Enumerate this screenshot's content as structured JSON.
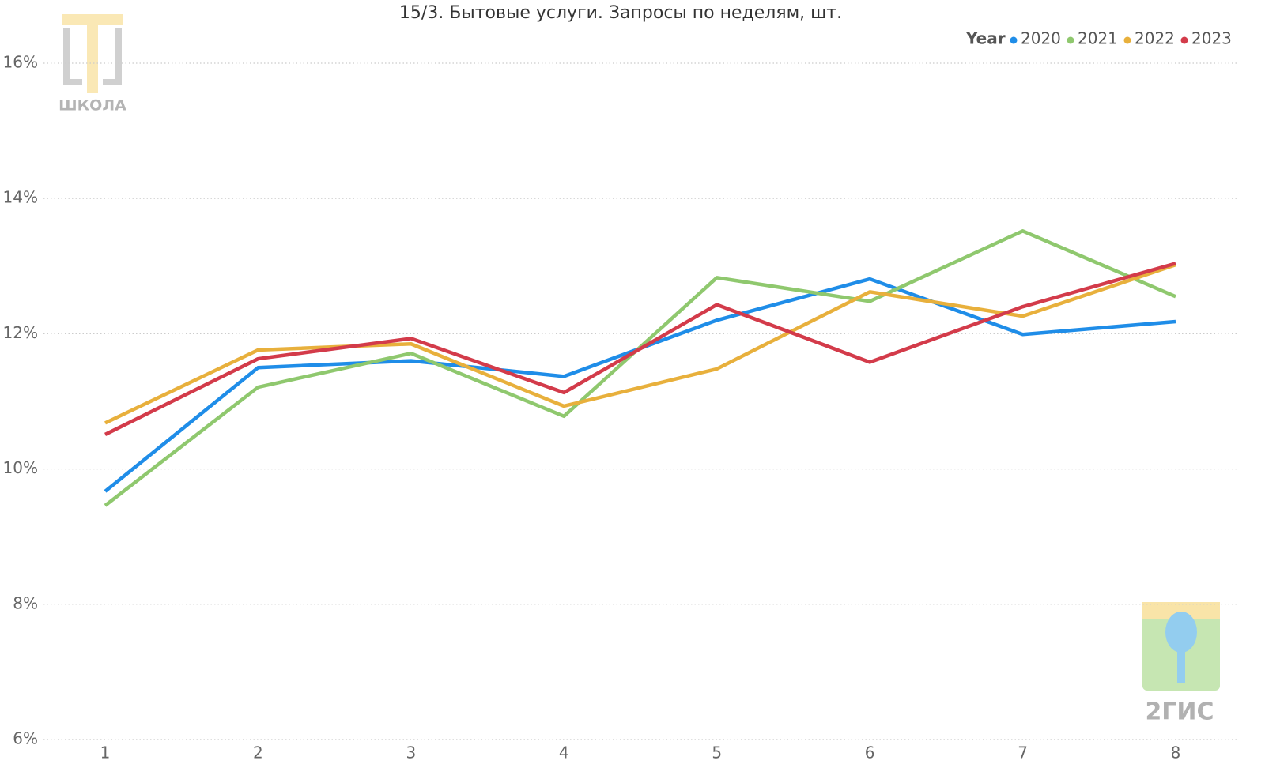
{
  "chart_data": {
    "type": "line",
    "title": "15/3. Бытовые услуги. Запросы по неделям, шт.",
    "categories": [
      "1",
      "2",
      "3",
      "4",
      "5",
      "6",
      "7",
      "8"
    ],
    "legend_title": "Year",
    "legend_position": "top-right",
    "grid": true,
    "ylim": [
      6,
      16
    ],
    "yticks": [
      {
        "value": 6,
        "label": "6%"
      },
      {
        "value": 8,
        "label": "8%"
      },
      {
        "value": 10,
        "label": "10%"
      },
      {
        "value": 12,
        "label": "12%"
      },
      {
        "value": 14,
        "label": "14%"
      },
      {
        "value": 16,
        "label": "16%"
      }
    ],
    "series": [
      {
        "name": "2020",
        "color": "#1f8de8",
        "values": [
          9.67,
          11.5,
          11.6,
          11.37,
          12.2,
          12.81,
          11.99,
          12.18
        ]
      },
      {
        "name": "2021",
        "color": "#8fc86e",
        "values": [
          9.46,
          11.21,
          11.71,
          10.78,
          12.83,
          12.48,
          13.52,
          12.55
        ]
      },
      {
        "name": "2022",
        "color": "#e8b03c",
        "values": [
          10.68,
          11.76,
          11.85,
          10.93,
          11.48,
          12.62,
          12.26,
          13.02
        ]
      },
      {
        "name": "2023",
        "color": "#d33b4a",
        "values": [
          10.51,
          11.63,
          11.93,
          11.13,
          12.43,
          11.58,
          12.4,
          13.04
        ]
      }
    ]
  },
  "watermarks": {
    "school": "ШКОЛА",
    "brand": "2ГИС"
  }
}
